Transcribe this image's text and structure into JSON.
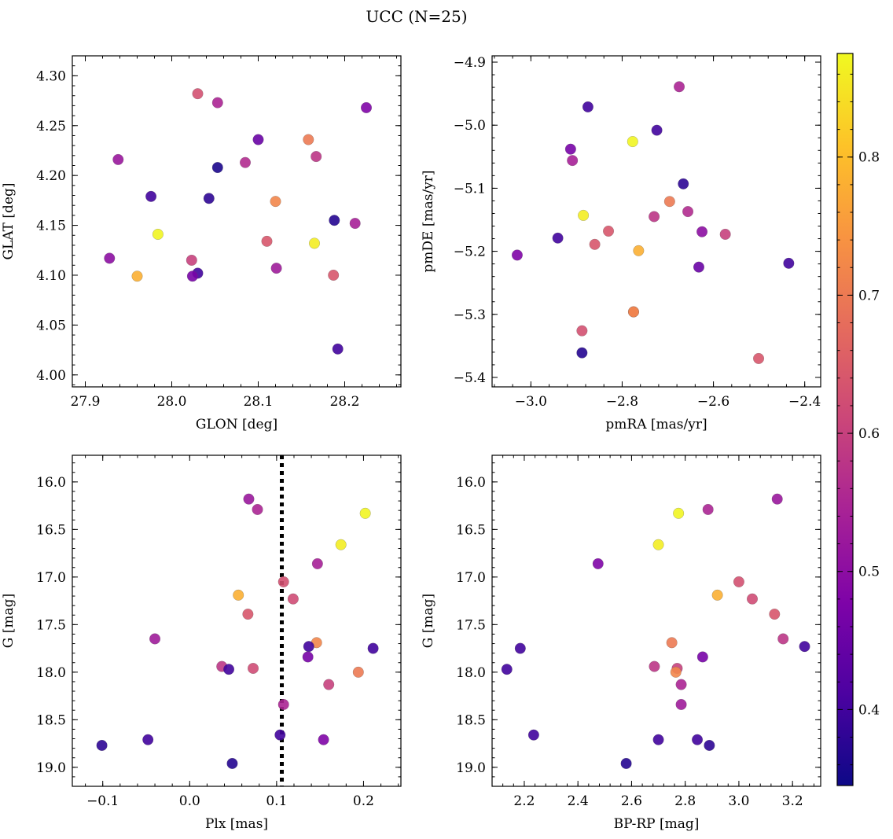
{
  "title": "UCC (N=25)",
  "colorbar": {
    "range": [
      0.345,
      0.875
    ],
    "ticks": [
      0.4,
      0.5,
      0.6,
      0.7,
      0.8
    ],
    "colormap": "plasma"
  },
  "chart_data": [
    {
      "type": "scatter",
      "xlabel": "GLON [deg]",
      "ylabel": "GLAT [deg]",
      "xlim": [
        27.885,
        28.265
      ],
      "ylim": [
        3.988,
        4.32
      ],
      "xticks": [
        27.9,
        28.0,
        28.1,
        28.2
      ],
      "yticks": [
        4.0,
        4.05,
        4.1,
        4.15,
        4.2,
        4.25,
        4.3
      ],
      "x": [
        28.03,
        28.053,
        28.225,
        28.158,
        28.1,
        27.938,
        28.167,
        28.053,
        28.085,
        27.976,
        28.043,
        28.12,
        28.188,
        28.212,
        27.984,
        28.11,
        28.165,
        27.928,
        28.023,
        28.121,
        28.03,
        28.024,
        28.187,
        27.96,
        28.192
      ],
      "y": [
        4.282,
        4.273,
        4.268,
        4.236,
        4.236,
        4.216,
        4.219,
        4.208,
        4.213,
        4.179,
        4.177,
        4.174,
        4.155,
        4.152,
        4.141,
        4.134,
        4.132,
        4.117,
        4.115,
        4.107,
        4.102,
        4.099,
        4.1,
        4.099,
        4.026
      ],
      "c": [
        0.63,
        0.55,
        0.48,
        0.7,
        0.45,
        0.52,
        0.58,
        0.36,
        0.56,
        0.4,
        0.38,
        0.72,
        0.37,
        0.54,
        0.87,
        0.64,
        0.86,
        0.5,
        0.6,
        0.53,
        0.4,
        0.47,
        0.64,
        0.78,
        0.4
      ]
    },
    {
      "type": "scatter",
      "xlabel": "pmRA [mas/yr]",
      "ylabel": "pmDE [mas/yr]",
      "xlim": [
        -3.085,
        -2.365
      ],
      "ylim": [
        -5.415,
        -4.89
      ],
      "xticks": [
        -3.0,
        -2.8,
        -2.6,
        -2.4
      ],
      "yticks": [
        -5.4,
        -5.3,
        -5.2,
        -5.1,
        -5.0,
        -4.9
      ],
      "x": [
        -2.675,
        -2.875,
        -2.724,
        -2.777,
        -2.913,
        -2.909,
        -2.666,
        -2.696,
        -2.73,
        -2.656,
        -2.885,
        -2.625,
        -2.574,
        -2.941,
        -2.83,
        -2.86,
        -2.764,
        -3.03,
        -2.435,
        -2.632,
        -2.775,
        -2.775,
        -2.888,
        -2.501,
        -2.888
      ],
      "y": [
        -4.939,
        -4.971,
        -5.008,
        -5.026,
        -5.038,
        -5.056,
        -5.093,
        -5.121,
        -5.145,
        -5.137,
        -5.143,
        -5.169,
        -5.173,
        -5.179,
        -5.168,
        -5.189,
        -5.199,
        -5.206,
        -5.219,
        -5.225,
        -5.296,
        -5.296,
        -5.326,
        -5.37,
        -5.361
      ],
      "c": [
        0.55,
        0.4,
        0.4,
        0.87,
        0.47,
        0.54,
        0.38,
        0.7,
        0.58,
        0.56,
        0.86,
        0.5,
        0.6,
        0.4,
        0.64,
        0.64,
        0.78,
        0.48,
        0.4,
        0.45,
        0.66,
        0.72,
        0.63,
        0.64,
        0.37
      ]
    },
    {
      "type": "scatter",
      "xlabel": "Plx [mas]",
      "ylabel": "G [mag]",
      "xlim": [
        -0.135,
        0.243
      ],
      "ylim": [
        19.2,
        15.72
      ],
      "xticks": [
        -0.1,
        0.0,
        0.1,
        0.2
      ],
      "yticks": [
        16.0,
        16.5,
        17.0,
        17.5,
        18.0,
        18.5,
        19.0
      ],
      "vline": {
        "x": 0.106,
        "style": "dotted"
      },
      "x": [
        0.068,
        0.078,
        0.202,
        0.174,
        0.147,
        0.108,
        0.056,
        0.119,
        0.067,
        -0.04,
        0.146,
        0.137,
        0.136,
        0.211,
        0.037,
        0.045,
        0.073,
        0.194,
        0.16,
        0.108,
        0.104,
        0.154,
        -0.101,
        -0.048,
        0.049
      ],
      "y": [
        16.18,
        16.29,
        16.33,
        16.66,
        16.86,
        17.05,
        17.19,
        17.23,
        17.39,
        17.65,
        17.69,
        17.73,
        17.84,
        17.75,
        17.94,
        17.97,
        17.96,
        18.0,
        18.13,
        18.34,
        18.66,
        18.71,
        18.77,
        18.71,
        18.96
      ],
      "c": [
        0.52,
        0.55,
        0.87,
        0.86,
        0.54,
        0.63,
        0.78,
        0.62,
        0.64,
        0.53,
        0.72,
        0.4,
        0.47,
        0.4,
        0.58,
        0.4,
        0.62,
        0.7,
        0.6,
        0.55,
        0.4,
        0.48,
        0.38,
        0.4,
        0.37
      ]
    },
    {
      "type": "scatter",
      "xlabel": "BP-RP [mag]",
      "ylabel": "G [mag]",
      "xlim": [
        2.08,
        3.305
      ],
      "ylim": [
        19.2,
        15.72
      ],
      "xticks": [
        2.2,
        2.4,
        2.6,
        2.8,
        3.0,
        3.2
      ],
      "yticks": [
        16.0,
        16.5,
        17.0,
        17.5,
        18.0,
        18.5,
        19.0
      ],
      "x": [
        3.143,
        2.885,
        2.775,
        2.7,
        2.475,
        3.0,
        2.92,
        3.05,
        3.133,
        3.165,
        2.75,
        3.245,
        2.185,
        2.865,
        2.135,
        2.685,
        2.77,
        2.765,
        2.785,
        2.785,
        2.235,
        2.7,
        2.845,
        2.89,
        2.58
      ],
      "y": [
        16.18,
        16.29,
        16.33,
        16.66,
        16.86,
        17.05,
        17.19,
        17.23,
        17.39,
        17.65,
        17.69,
        17.73,
        17.75,
        17.84,
        17.97,
        17.94,
        17.96,
        18.0,
        18.13,
        18.34,
        18.66,
        18.71,
        18.71,
        18.77,
        18.96
      ],
      "c": [
        0.52,
        0.55,
        0.87,
        0.86,
        0.48,
        0.63,
        0.78,
        0.62,
        0.64,
        0.58,
        0.7,
        0.4,
        0.4,
        0.47,
        0.4,
        0.58,
        0.6,
        0.72,
        0.55,
        0.53,
        0.4,
        0.4,
        0.4,
        0.38,
        0.37
      ]
    }
  ]
}
